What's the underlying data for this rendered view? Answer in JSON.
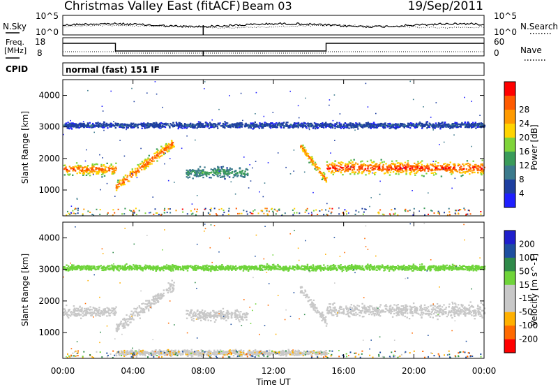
{
  "header": {
    "title": "Christmas Valley East (fitACF)",
    "beam": "Beam 03",
    "date": "19/Sep/2011"
  },
  "noise_panel": {
    "left_label": "N.Sky",
    "right_label": "N.Search",
    "left_ticks": [
      "10^5",
      "10^0"
    ],
    "right_ticks": [
      "10^5",
      "10^0"
    ]
  },
  "freq_panel": {
    "left_label_line1": "Freq.",
    "left_label_line2": "[MHz]",
    "right_label": "Nave",
    "left_ticks": [
      "18",
      "8"
    ],
    "right_ticks": [
      "60",
      "0"
    ]
  },
  "cpid": {
    "label": "CPID",
    "value": "normal (fast) 151 IF"
  },
  "colors": {
    "power_scale": [
      "#1f1fff",
      "#1e3fa0",
      "#3b7a8c",
      "#3a9b5a",
      "#7fd43a",
      "#ffd400",
      "#ff9a00",
      "#ff5a00",
      "#ff0000"
    ],
    "velocity_scale": [
      "#1f1fcc",
      "#1e4fa0",
      "#2f8a4a",
      "#6fd43a",
      "#c8c8c8",
      "#c8c8c8",
      "#ffb000",
      "#ff6a00",
      "#ff0000"
    ]
  },
  "chart_data": [
    {
      "type": "heatmap",
      "name": "power",
      "ylabel": "Slant Range [km]",
      "ylim": [
        180,
        4500
      ],
      "y_ticks": [
        "1000",
        "2000",
        "3000",
        "4000"
      ],
      "colorbar_label": "Power [dB]",
      "colorbar_ticks": [
        "4",
        "8",
        "12",
        "16",
        "20",
        "24",
        "28"
      ],
      "colorbar_range": [
        0,
        30
      ],
      "bands": [
        {
          "x": [
            0,
            3
          ],
          "y_center": 1650,
          "y_width": 500,
          "peak_db": 26
        },
        {
          "x": [
            3,
            6.3
          ],
          "y_center_start": 1100,
          "y_center_end": 2500,
          "y_width": 500,
          "peak_db": 26
        },
        {
          "x": [
            7,
            10.5
          ],
          "y_center": 1550,
          "y_width": 500,
          "peak_db": 12
        },
        {
          "x": [
            13.5,
            15
          ],
          "y_center_start": 2400,
          "y_center_end": 1300,
          "y_width": 400,
          "peak_db": 24
        },
        {
          "x": [
            15,
            24
          ],
          "y_center": 1700,
          "y_width": 600,
          "peak_db": 28
        },
        {
          "x": [
            0,
            24
          ],
          "y_center": 3050,
          "y_width": 250,
          "peak_db": 6
        }
      ]
    },
    {
      "type": "heatmap",
      "name": "velocity",
      "xlabel": "Time UT",
      "x_ticks": [
        "00:00",
        "04:00",
        "08:00",
        "12:00",
        "16:00",
        "20:00",
        "00:00"
      ],
      "xlim": [
        0,
        24
      ],
      "ylabel": "Slant Range [km]",
      "ylim": [
        180,
        4500
      ],
      "y_ticks": [
        "1000",
        "2000",
        "3000",
        "4000"
      ],
      "colorbar_label": "Velocity [m s^-1]",
      "colorbar_ticks": [
        "200",
        "100",
        "50",
        "15",
        "-15",
        "-50",
        "-100",
        "-200"
      ],
      "colorbar_range": [
        -250,
        250
      ],
      "bands": [
        {
          "x": [
            0,
            3
          ],
          "y_center": 1650,
          "y_width": 500,
          "velocity": 0
        },
        {
          "x": [
            3,
            6.3
          ],
          "y_center_start": 1100,
          "y_center_end": 2500,
          "y_width": 500,
          "velocity": 0
        },
        {
          "x": [
            7,
            10.5
          ],
          "y_center": 1550,
          "y_width": 500,
          "velocity": -30
        },
        {
          "x": [
            13.5,
            15
          ],
          "y_center_start": 2400,
          "y_center_end": 1300,
          "y_width": 400,
          "velocity": 0
        },
        {
          "x": [
            15,
            24
          ],
          "y_center": 1700,
          "y_width": 600,
          "velocity": 0
        },
        {
          "x": [
            0,
            24
          ],
          "y_center": 3050,
          "y_width": 250,
          "velocity": 30
        },
        {
          "x": [
            3,
            15
          ],
          "y_center": 350,
          "y_width": 250,
          "velocity": -40
        }
      ]
    }
  ]
}
